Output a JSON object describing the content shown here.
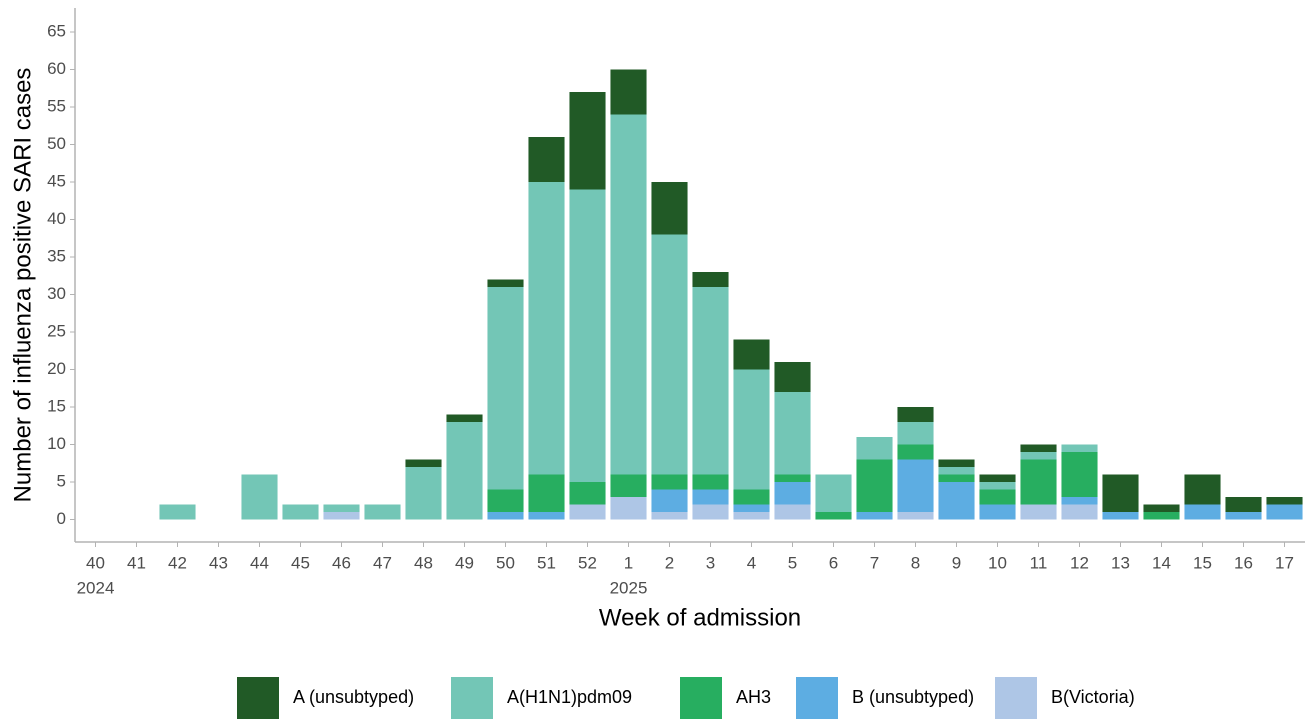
{
  "chart_data": {
    "type": "bar",
    "stacked": true,
    "x_label": "Week of admission",
    "y_label": "Number of influenza positive SARI cases",
    "categories": [
      "40",
      "41",
      "42",
      "43",
      "44",
      "45",
      "46",
      "47",
      "48",
      "49",
      "50",
      "51",
      "52",
      "1",
      "2",
      "3",
      "4",
      "5",
      "6",
      "7",
      "8",
      "9",
      "10",
      "11",
      "12",
      "13",
      "14",
      "15",
      "16",
      "17"
    ],
    "years": [
      "2024",
      null,
      null,
      null,
      null,
      null,
      null,
      null,
      null,
      null,
      null,
      null,
      null,
      "2025",
      null,
      null,
      null,
      null,
      null,
      null,
      null,
      null,
      null,
      null,
      null,
      null,
      null,
      null,
      null,
      null
    ],
    "ylim": [
      -3,
      68.2
    ],
    "yticks": [
      0,
      5,
      10,
      15,
      20,
      25,
      30,
      35,
      40,
      45,
      50,
      55,
      60,
      65
    ],
    "series": [
      {
        "name": "A (unsubtyped)",
        "color": "#215a26",
        "values": [
          0,
          0,
          0,
          0,
          0,
          0,
          0,
          0,
          1,
          1,
          1,
          6,
          13,
          6,
          7,
          2,
          4,
          4,
          0,
          0,
          2,
          1,
          1,
          1,
          0,
          5,
          1,
          4,
          2,
          1
        ]
      },
      {
        "name": "A(H1N1)pdm09",
        "color": "#73c6b6",
        "values": [
          0,
          0,
          2,
          0,
          6,
          2,
          1,
          2,
          7,
          13,
          27,
          39,
          39,
          48,
          32,
          25,
          16,
          11,
          5,
          3,
          3,
          1,
          1,
          1,
          1,
          0,
          0,
          0,
          0,
          0
        ]
      },
      {
        "name": "AH3",
        "color": "#27ae60",
        "values": [
          0,
          0,
          0,
          0,
          0,
          0,
          0,
          0,
          0,
          0,
          3,
          5,
          3,
          3,
          2,
          2,
          2,
          1,
          1,
          7,
          2,
          1,
          2,
          6,
          6,
          0,
          1,
          0,
          0,
          0
        ]
      },
      {
        "name": "B (unsubtyped)",
        "color": "#5dade2",
        "values": [
          0,
          0,
          0,
          0,
          0,
          0,
          0,
          0,
          0,
          0,
          1,
          1,
          0,
          0,
          3,
          2,
          1,
          3,
          0,
          1,
          7,
          5,
          2,
          0,
          1,
          1,
          0,
          2,
          1,
          2
        ]
      },
      {
        "name": "B(Victoria)",
        "color": "#aec6e6",
        "values": [
          0,
          0,
          0,
          0,
          0,
          0,
          1,
          0,
          0,
          0,
          0,
          0,
          2,
          3,
          1,
          2,
          1,
          2,
          0,
          0,
          1,
          0,
          0,
          2,
          2,
          0,
          0,
          0,
          0,
          0
        ]
      }
    ]
  }
}
